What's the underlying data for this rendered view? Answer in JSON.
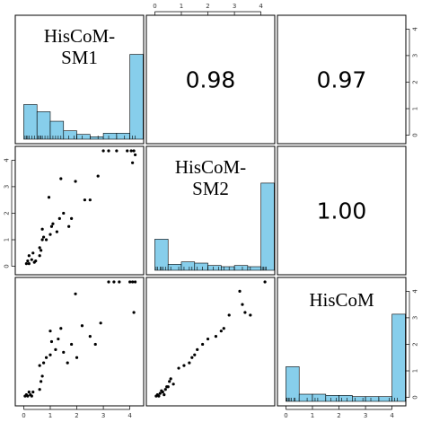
{
  "chart_data": {
    "type": "scatter",
    "variables": [
      {
        "key": "SM1",
        "label_lines": [
          "HisCoM-",
          "SM1"
        ]
      },
      {
        "key": "SM2",
        "label_lines": [
          "HisCoM-",
          "SM2"
        ]
      },
      {
        "key": "HisCoM",
        "label_lines": [
          "HisCoM"
        ]
      }
    ],
    "axis_range": [
      -0.15,
      4.35
    ],
    "ticks": [
      0,
      1,
      2,
      3,
      4
    ],
    "tick_labels": [
      "0",
      "1",
      "2",
      "3",
      "4"
    ],
    "correlations": [
      {
        "row": 0,
        "col": 1,
        "text": "0.98"
      },
      {
        "row": 0,
        "col": 2,
        "text": "0.97"
      },
      {
        "row": 1,
        "col": 2,
        "text": "1.00"
      }
    ],
    "histogram_color": "#87ceeb",
    "histograms": [
      {
        "variable": "SM1",
        "bins": [
          [
            0,
            0.5
          ],
          [
            0.5,
            1
          ],
          [
            1,
            1.5
          ],
          [
            1.5,
            2
          ],
          [
            2,
            2.5
          ],
          [
            2.5,
            3
          ],
          [
            3,
            3.5
          ],
          [
            3.5,
            4
          ],
          [
            4,
            4.5
          ]
        ],
        "heights": [
          0.29,
          0.23,
          0.15,
          0.07,
          0.04,
          0.02,
          0.05,
          0.05,
          0.71
        ]
      },
      {
        "variable": "SM2",
        "bins": [
          [
            0,
            0.5
          ],
          [
            0.5,
            1
          ],
          [
            1,
            1.5
          ],
          [
            1.5,
            2
          ],
          [
            2,
            2.5
          ],
          [
            2.5,
            3
          ],
          [
            3,
            3.5
          ],
          [
            3.5,
            4
          ],
          [
            4,
            4.5
          ]
        ],
        "heights": [
          0.26,
          0.05,
          0.07,
          0.06,
          0.04,
          0.03,
          0.04,
          0.03,
          0.73
        ]
      },
      {
        "variable": "HisCoM",
        "bins": [
          [
            0,
            0.5
          ],
          [
            0.5,
            1
          ],
          [
            1,
            1.5
          ],
          [
            1.5,
            2
          ],
          [
            2,
            2.5
          ],
          [
            2.5,
            3
          ],
          [
            3,
            3.5
          ],
          [
            3.5,
            4
          ],
          [
            4,
            4.5
          ]
        ],
        "heights": [
          0.29,
          0.06,
          0.06,
          0.05,
          0.05,
          0.04,
          0.04,
          0.04,
          0.73
        ]
      }
    ],
    "rug": {
      "SM1": [
        0.05,
        0.1,
        0.15,
        0.2,
        0.3,
        0.4,
        0.55,
        0.6,
        0.65,
        0.7,
        0.8,
        0.9,
        1.0,
        1.1,
        1.2,
        1.3,
        1.4,
        1.5,
        1.7,
        1.9,
        2.0,
        2.2,
        2.5,
        2.8,
        3.2,
        3.5,
        3.8,
        4.0,
        4.1,
        4.2
      ],
      "SM2": [
        0.05,
        0.1,
        0.2,
        0.25,
        0.3,
        0.4,
        0.5,
        0.6,
        0.9,
        1.1,
        1.3,
        1.4,
        1.6,
        1.8,
        2.0,
        2.2,
        2.4,
        2.6,
        2.8,
        3.0,
        3.3,
        3.6,
        4.05,
        4.1,
        4.15,
        4.2
      ],
      "HisCoM": [
        0.02,
        0.05,
        0.1,
        0.15,
        0.2,
        0.3,
        0.35,
        0.5,
        0.8,
        1.1,
        1.2,
        1.5,
        1.7,
        1.9,
        2.1,
        2.3,
        2.6,
        2.9,
        3.2,
        3.5,
        3.9,
        4.0,
        4.1,
        4.2
      ]
    },
    "scatter_points": {
      "SM2_vs_SM1": [
        [
          0.1,
          0.1
        ],
        [
          0.15,
          0.2
        ],
        [
          0.2,
          0.1
        ],
        [
          0.2,
          0.4
        ],
        [
          0.3,
          0.25
        ],
        [
          0.35,
          0.5
        ],
        [
          0.4,
          0.15
        ],
        [
          0.45,
          0.2
        ],
        [
          0.6,
          0.4
        ],
        [
          0.6,
          0.7
        ],
        [
          0.65,
          0.6
        ],
        [
          0.7,
          1.0
        ],
        [
          0.7,
          1.4
        ],
        [
          0.75,
          1.1
        ],
        [
          0.85,
          1.0
        ],
        [
          1.0,
          1.2
        ],
        [
          1.05,
          1.5
        ],
        [
          1.1,
          1.6
        ],
        [
          0.95,
          2.6
        ],
        [
          1.25,
          1.3
        ],
        [
          1.35,
          1.8
        ],
        [
          1.4,
          3.3
        ],
        [
          1.5,
          2.0
        ],
        [
          1.7,
          1.5
        ],
        [
          1.8,
          1.8
        ],
        [
          1.95,
          3.2
        ],
        [
          2.3,
          2.5
        ],
        [
          2.5,
          2.5
        ],
        [
          2.8,
          3.4
        ],
        [
          3.0,
          4.35
        ],
        [
          3.2,
          4.35
        ],
        [
          3.5,
          4.35
        ],
        [
          3.9,
          4.35
        ],
        [
          4.05,
          4.35
        ],
        [
          4.1,
          3.9
        ],
        [
          4.15,
          4.35
        ],
        [
          4.2,
          4.2
        ]
      ],
      "HisCoM_vs_SM1": [
        [
          0.05,
          0.05
        ],
        [
          0.1,
          0.1
        ],
        [
          0.15,
          0.05
        ],
        [
          0.2,
          0.2
        ],
        [
          0.25,
          0.1
        ],
        [
          0.3,
          0.05
        ],
        [
          0.35,
          0.2
        ],
        [
          0.6,
          0.3
        ],
        [
          0.65,
          0.6
        ],
        [
          0.7,
          0.8
        ],
        [
          0.6,
          1.2
        ],
        [
          0.75,
          1.3
        ],
        [
          0.85,
          1.5
        ],
        [
          1.0,
          1.6
        ],
        [
          1.05,
          2.1
        ],
        [
          1.0,
          2.5
        ],
        [
          1.2,
          1.8
        ],
        [
          1.3,
          2.2
        ],
        [
          1.4,
          2.6
        ],
        [
          1.5,
          1.7
        ],
        [
          1.65,
          1.3
        ],
        [
          1.8,
          2.0
        ],
        [
          1.95,
          3.9
        ],
        [
          2.0,
          1.5
        ],
        [
          2.2,
          2.7
        ],
        [
          2.5,
          2.3
        ],
        [
          2.7,
          2.0
        ],
        [
          2.9,
          2.8
        ],
        [
          3.2,
          4.35
        ],
        [
          3.4,
          4.35
        ],
        [
          3.6,
          4.35
        ],
        [
          4.0,
          4.35
        ],
        [
          4.1,
          4.35
        ],
        [
          4.15,
          3.2
        ],
        [
          4.2,
          4.35
        ]
      ],
      "HisCoM_vs_SM2": [
        [
          0.05,
          0.05
        ],
        [
          0.1,
          0.1
        ],
        [
          0.15,
          0.05
        ],
        [
          0.2,
          0.15
        ],
        [
          0.25,
          0.25
        ],
        [
          0.3,
          0.2
        ],
        [
          0.35,
          0.1
        ],
        [
          0.4,
          0.3
        ],
        [
          0.45,
          0.4
        ],
        [
          0.5,
          0.4
        ],
        [
          0.55,
          0.6
        ],
        [
          0.6,
          0.7
        ],
        [
          0.7,
          0.5
        ],
        [
          0.9,
          1.1
        ],
        [
          1.1,
          1.2
        ],
        [
          1.3,
          1.3
        ],
        [
          1.4,
          1.5
        ],
        [
          1.5,
          1.6
        ],
        [
          1.6,
          1.8
        ],
        [
          1.8,
          2.0
        ],
        [
          2.0,
          2.2
        ],
        [
          2.3,
          2.3
        ],
        [
          2.5,
          2.5
        ],
        [
          2.6,
          2.6
        ],
        [
          2.8,
          3.1
        ],
        [
          3.2,
          4.0
        ],
        [
          3.3,
          3.5
        ],
        [
          3.4,
          3.2
        ],
        [
          3.6,
          3.1
        ],
        [
          4.15,
          4.35
        ]
      ]
    }
  }
}
